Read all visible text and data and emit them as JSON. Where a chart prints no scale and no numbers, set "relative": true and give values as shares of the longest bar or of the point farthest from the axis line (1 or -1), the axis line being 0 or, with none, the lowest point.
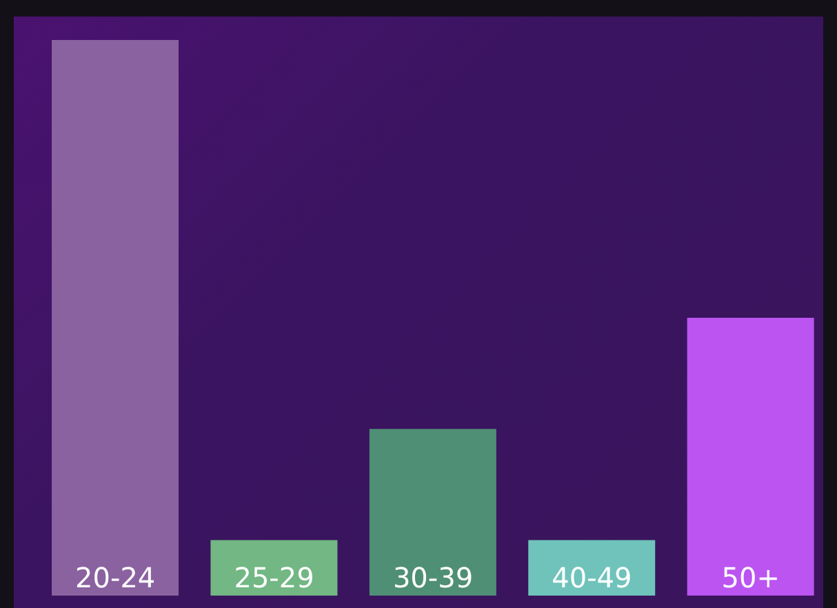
{
  "chart_data": {
    "type": "bar",
    "relative": true,
    "categories": [
      "20-24",
      "25-29",
      "30-39",
      "40-49",
      "50+"
    ],
    "values": [
      1,
      0.1,
      0.3,
      0.1,
      0.5
    ],
    "colors": [
      "#8a62a0",
      "#72b784",
      "#4f8f75",
      "#6fc3bb",
      "#bb54f0"
    ]
  }
}
